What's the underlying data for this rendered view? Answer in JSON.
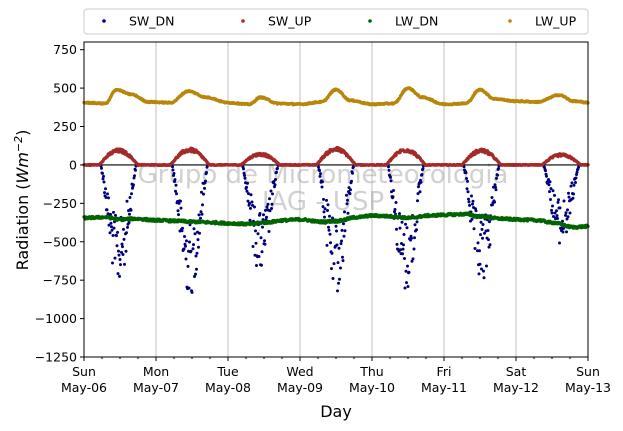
{
  "chart_data": {
    "type": "scatter",
    "xlabel": "Day",
    "ylabel_text": "Radiation (",
    "ylabel_unit_base": "Wm",
    "ylabel_unit_exp": "−2",
    "ylabel_close": ")",
    "xlim": [
      0,
      7
    ],
    "ylim": [
      -1250,
      800
    ],
    "yticks": [
      -1250,
      -1000,
      -750,
      -500,
      -250,
      0,
      250,
      500,
      750
    ],
    "ytick_labels": [
      "−1250",
      "−1000",
      "−750",
      "−500",
      "−250",
      "0",
      "250",
      "500",
      "750"
    ],
    "xticks": [
      {
        "x": 0,
        "line1": "Sun",
        "line2": "May-06"
      },
      {
        "x": 1,
        "line1": "Mon",
        "line2": "May-07"
      },
      {
        "x": 2,
        "line1": "Tue",
        "line2": "May-08"
      },
      {
        "x": 3,
        "line1": "Wed",
        "line2": "May-09"
      },
      {
        "x": 4,
        "line1": "Thu",
        "line2": "May-10"
      },
      {
        "x": 5,
        "line1": "Fri",
        "line2": "May-11"
      },
      {
        "x": 6,
        "line1": "Sat",
        "line2": "May-12"
      },
      {
        "x": 7,
        "line1": "Sun",
        "line2": "May-13"
      }
    ],
    "grid": "vertical",
    "legend_position": "top",
    "watermark": [
      "Grupo de Micrometeorologia",
      "IAG - USP"
    ],
    "series": [
      {
        "name": "SW_DN",
        "color": "#00007f",
        "daily_min": [
          -760,
          -820,
          -680,
          -810,
          -800,
          -760,
          -500
        ],
        "noon": [
          0.48,
          0.47,
          0.45,
          0.5,
          0.47,
          0.52,
          0.63
        ]
      },
      {
        "name": "SW_UP",
        "color": "#a52a2a",
        "daily_max": [
          100,
          105,
          75,
          110,
          105,
          100,
          70
        ],
        "noon": [
          0.48,
          0.47,
          0.45,
          0.5,
          0.47,
          0.52,
          0.63
        ]
      },
      {
        "name": "LW_DN",
        "color": "#006400",
        "x": [
          0,
          0.3,
          0.5,
          0.7,
          1.0,
          1.3,
          1.5,
          1.8,
          2.0,
          2.3,
          2.5,
          2.8,
          3.0,
          3.3,
          3.5,
          3.8,
          4.0,
          4.3,
          4.5,
          4.8,
          5.0,
          5.3,
          5.5,
          5.8,
          6.0,
          6.3,
          6.5,
          6.8,
          7.0
        ],
        "y": [
          -345,
          -340,
          -355,
          -350,
          -360,
          -365,
          -370,
          -375,
          -380,
          -385,
          -375,
          -360,
          -355,
          -370,
          -365,
          -340,
          -330,
          -335,
          -345,
          -330,
          -325,
          -320,
          -335,
          -350,
          -355,
          -360,
          -375,
          -405,
          -400
        ]
      },
      {
        "name": "LW_UP",
        "color": "#b8860b",
        "x": [
          0,
          0.3,
          0.45,
          0.65,
          0.9,
          1.2,
          1.45,
          1.7,
          2.0,
          2.3,
          2.45,
          2.7,
          3.0,
          3.3,
          3.5,
          3.7,
          4.0,
          4.3,
          4.5,
          4.7,
          5.0,
          5.3,
          5.5,
          5.7,
          6.0,
          6.3,
          6.6,
          6.8,
          7.0
        ],
        "y": [
          405,
          400,
          490,
          460,
          410,
          405,
          480,
          440,
          405,
          395,
          440,
          400,
          395,
          410,
          490,
          420,
          395,
          400,
          500,
          440,
          395,
          400,
          490,
          430,
          415,
          410,
          455,
          415,
          405
        ]
      }
    ]
  }
}
